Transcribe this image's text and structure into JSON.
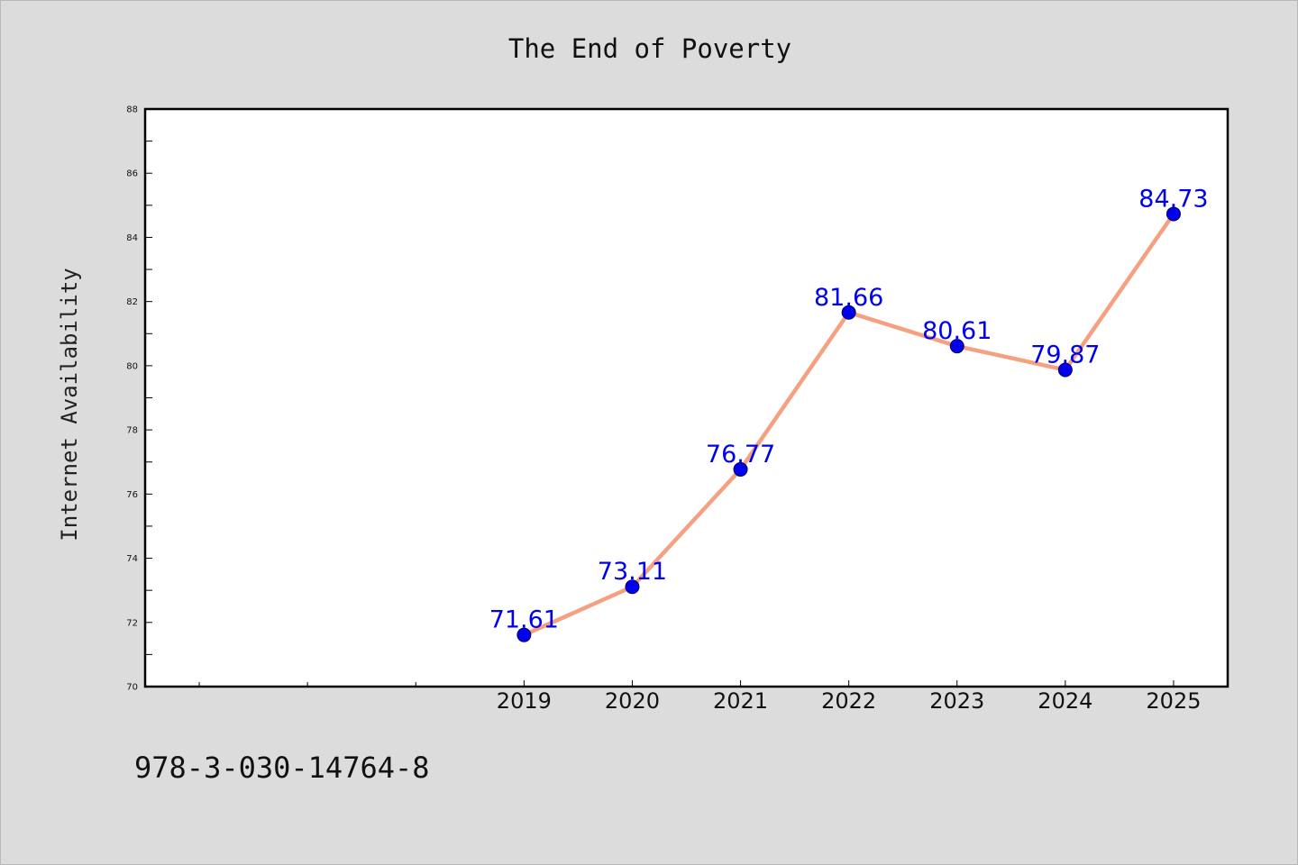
{
  "chart_data": {
    "type": "line",
    "title": "The End of Poverty",
    "xlabel": "",
    "ylabel": "Internet Availability",
    "categories": [
      "2019",
      "2020",
      "2021",
      "2022",
      "2023",
      "2024",
      "2025"
    ],
    "series": [
      {
        "values": [
          71.61,
          73.11,
          76.77,
          81.66,
          80.61,
          79.87,
          84.73
        ],
        "labels": [
          "71.61",
          "73.11",
          "76.77",
          "81.66",
          "80.61",
          "79.87",
          "84.73"
        ]
      }
    ],
    "ylim": [
      70,
      88
    ],
    "yticks": [
      "70",
      "72",
      "74",
      "76",
      "78",
      "80",
      "82",
      "84",
      "86",
      "88"
    ],
    "xlim": [
      2015.5,
      2025.5
    ],
    "grid": false,
    "line_color": "#f4a081",
    "marker_color": "#0000ee",
    "label_color": "#0000ee"
  },
  "footer": {
    "isbn": "978-3-030-14764-8"
  }
}
